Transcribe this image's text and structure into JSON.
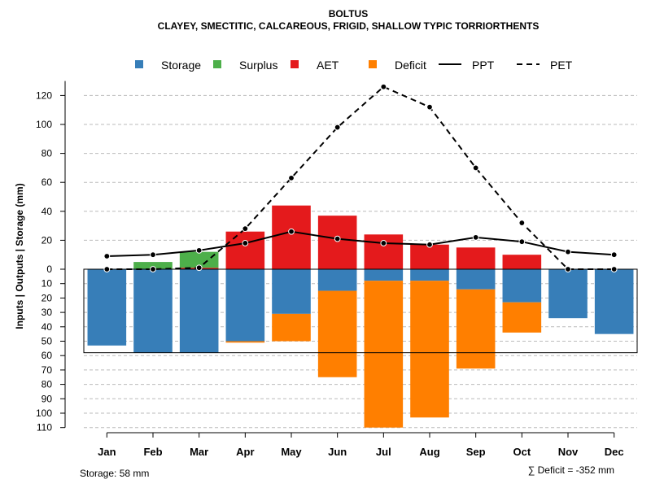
{
  "chart_data": {
    "type": "bar",
    "title": "BOLTUS",
    "subtitle": "CLAYEY, SMECTITIC, CALCAREOUS, FRIGID, SHALLOW TYPIC TORRIORTHENTS",
    "ylabel": "Inputs | Outputs | Storage    (mm)",
    "categories": [
      "Jan",
      "Feb",
      "Mar",
      "Apr",
      "May",
      "Jun",
      "Jul",
      "Aug",
      "Sep",
      "Oct",
      "Nov",
      "Dec"
    ],
    "ylim": [
      -110,
      130
    ],
    "yticks_top": [
      0,
      20,
      40,
      60,
      80,
      100,
      120
    ],
    "yticks_bottom": [
      10,
      20,
      30,
      40,
      50,
      60,
      70,
      80,
      90,
      100,
      110
    ],
    "storage_capacity": 58,
    "legend": {
      "storage": "Storage",
      "surplus": "Surplus",
      "aet": "AET",
      "deficit": "Deficit",
      "ppt": "PPT",
      "pet": "PET"
    },
    "colors": {
      "storage": "#377EB8",
      "surplus": "#4DAF4A",
      "aet": "#E41A1C",
      "deficit": "#FF7F00",
      "ppt": "#000000",
      "pet": "#000000",
      "grid": "#bbbbbb"
    },
    "series": {
      "storage": [
        53,
        58,
        58,
        50,
        31,
        15,
        8,
        8,
        14,
        23,
        34,
        45
      ],
      "deficit": [
        0,
        0,
        0,
        1,
        19,
        60,
        102,
        95,
        55,
        21,
        0,
        0
      ],
      "aet": [
        0,
        0,
        1,
        26,
        44,
        37,
        24,
        17,
        15,
        10,
        0,
        0
      ],
      "surplus": [
        0,
        5,
        11,
        0,
        0,
        0,
        0,
        0,
        0,
        0,
        0,
        0
      ],
      "ppt": [
        9,
        10,
        13,
        18,
        26,
        21,
        18,
        17,
        22,
        19,
        12,
        10
      ],
      "pet": [
        0,
        0,
        1,
        28,
        63,
        98,
        126,
        112,
        70,
        32,
        0,
        0
      ]
    },
    "footer_storage": "Storage: 58 mm",
    "footer_deficit": "∑ Deficit = -352 mm"
  }
}
